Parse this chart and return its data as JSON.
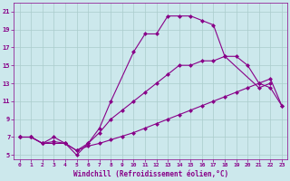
{
  "background_color": "#cce8ec",
  "grid_color": "#aacccc",
  "line_color": "#880088",
  "xlabel": "Windchill (Refroidissement éolien,°C)",
  "xlim": [
    -0.5,
    23.5
  ],
  "ylim": [
    4.5,
    22.0
  ],
  "xticks": [
    0,
    1,
    2,
    3,
    4,
    5,
    6,
    7,
    8,
    9,
    10,
    11,
    12,
    13,
    14,
    15,
    16,
    17,
    18,
    19,
    20,
    21,
    22,
    23
  ],
  "yticks": [
    5,
    7,
    9,
    11,
    13,
    15,
    17,
    19,
    21
  ],
  "curve1_x": [
    0,
    1,
    2,
    3,
    4,
    5,
    6,
    7,
    8,
    10,
    11,
    12,
    13,
    14,
    15,
    16,
    17,
    18,
    21,
    22
  ],
  "curve1_y": [
    7.0,
    7.0,
    6.3,
    7.0,
    6.3,
    5.0,
    6.3,
    8.0,
    11.0,
    16.5,
    18.5,
    18.5,
    20.5,
    20.5,
    20.5,
    20.0,
    19.5,
    16.0,
    12.5,
    13.0
  ],
  "curve2_x": [
    0,
    1,
    2,
    3,
    4,
    5,
    6,
    7,
    8,
    9,
    10,
    11,
    12,
    13,
    14,
    15,
    16,
    17,
    18,
    19,
    20,
    21,
    22,
    23
  ],
  "curve2_y": [
    7.0,
    7.0,
    6.3,
    6.5,
    6.3,
    5.5,
    6.0,
    6.3,
    6.7,
    7.1,
    7.5,
    8.0,
    8.5,
    9.0,
    9.5,
    10.0,
    10.5,
    11.0,
    11.5,
    12.0,
    12.5,
    13.0,
    13.5,
    10.5
  ],
  "curve3_x": [
    0,
    1,
    2,
    3,
    4,
    5,
    6,
    7,
    8,
    9,
    10,
    11,
    12,
    13,
    14,
    15,
    16,
    17,
    18,
    19,
    20,
    21,
    22,
    23
  ],
  "curve3_y": [
    7.0,
    7.0,
    6.3,
    6.3,
    6.3,
    5.5,
    6.3,
    7.5,
    9.0,
    10.0,
    11.0,
    12.0,
    13.0,
    14.0,
    15.0,
    15.0,
    15.5,
    15.5,
    16.0,
    16.0,
    15.0,
    13.0,
    12.5,
    10.5
  ]
}
